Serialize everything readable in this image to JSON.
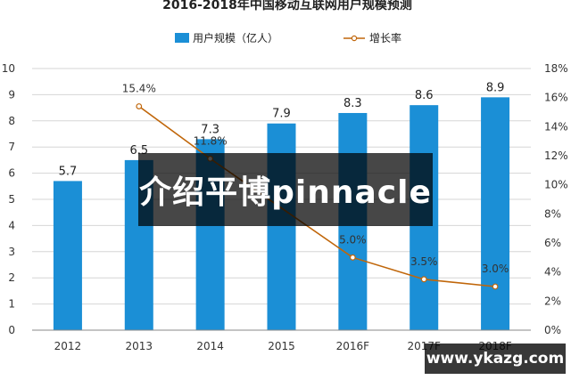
{
  "overlay_text": "介绍平博pinnacle",
  "site_badge": "www.ykazg.com",
  "chart_data": {
    "type": "bar",
    "title": "2016-2018年中国移动互联网用户规模预测",
    "categories": [
      "2012",
      "2013",
      "2014",
      "2015",
      "2016F",
      "2017F",
      "2018F"
    ],
    "series": [
      {
        "name": "用户规模（亿人）",
        "type": "bar",
        "axis": "left",
        "values": [
          5.7,
          6.5,
          7.3,
          7.9,
          8.3,
          8.6,
          8.9
        ],
        "labels": [
          "5.7",
          "6.5",
          "7.3",
          "7.9",
          "8.3",
          "8.6",
          "8.9"
        ],
        "color": "#1b8fd6"
      },
      {
        "name": "增长率",
        "type": "line",
        "axis": "right",
        "values": [
          null,
          15.4,
          11.8,
          null,
          5.0,
          3.5,
          3.0
        ],
        "labels": [
          "",
          "15.4%",
          "11.8%",
          "",
          "5.0%",
          "3.5%",
          "3.0%"
        ],
        "color": "#c0660a"
      }
    ],
    "ylim_left": [
      0,
      10
    ],
    "yticks_left": [
      "0",
      "1",
      "2",
      "3",
      "4",
      "5",
      "6",
      "7",
      "8",
      "9",
      "10"
    ],
    "ylim_right": [
      0,
      18
    ],
    "yticks_right": [
      "0%",
      "2%",
      "4%",
      "6%",
      "8%",
      "10%",
      "12%",
      "14%",
      "16%",
      "18%"
    ],
    "legend_position": "top",
    "grid": true
  }
}
